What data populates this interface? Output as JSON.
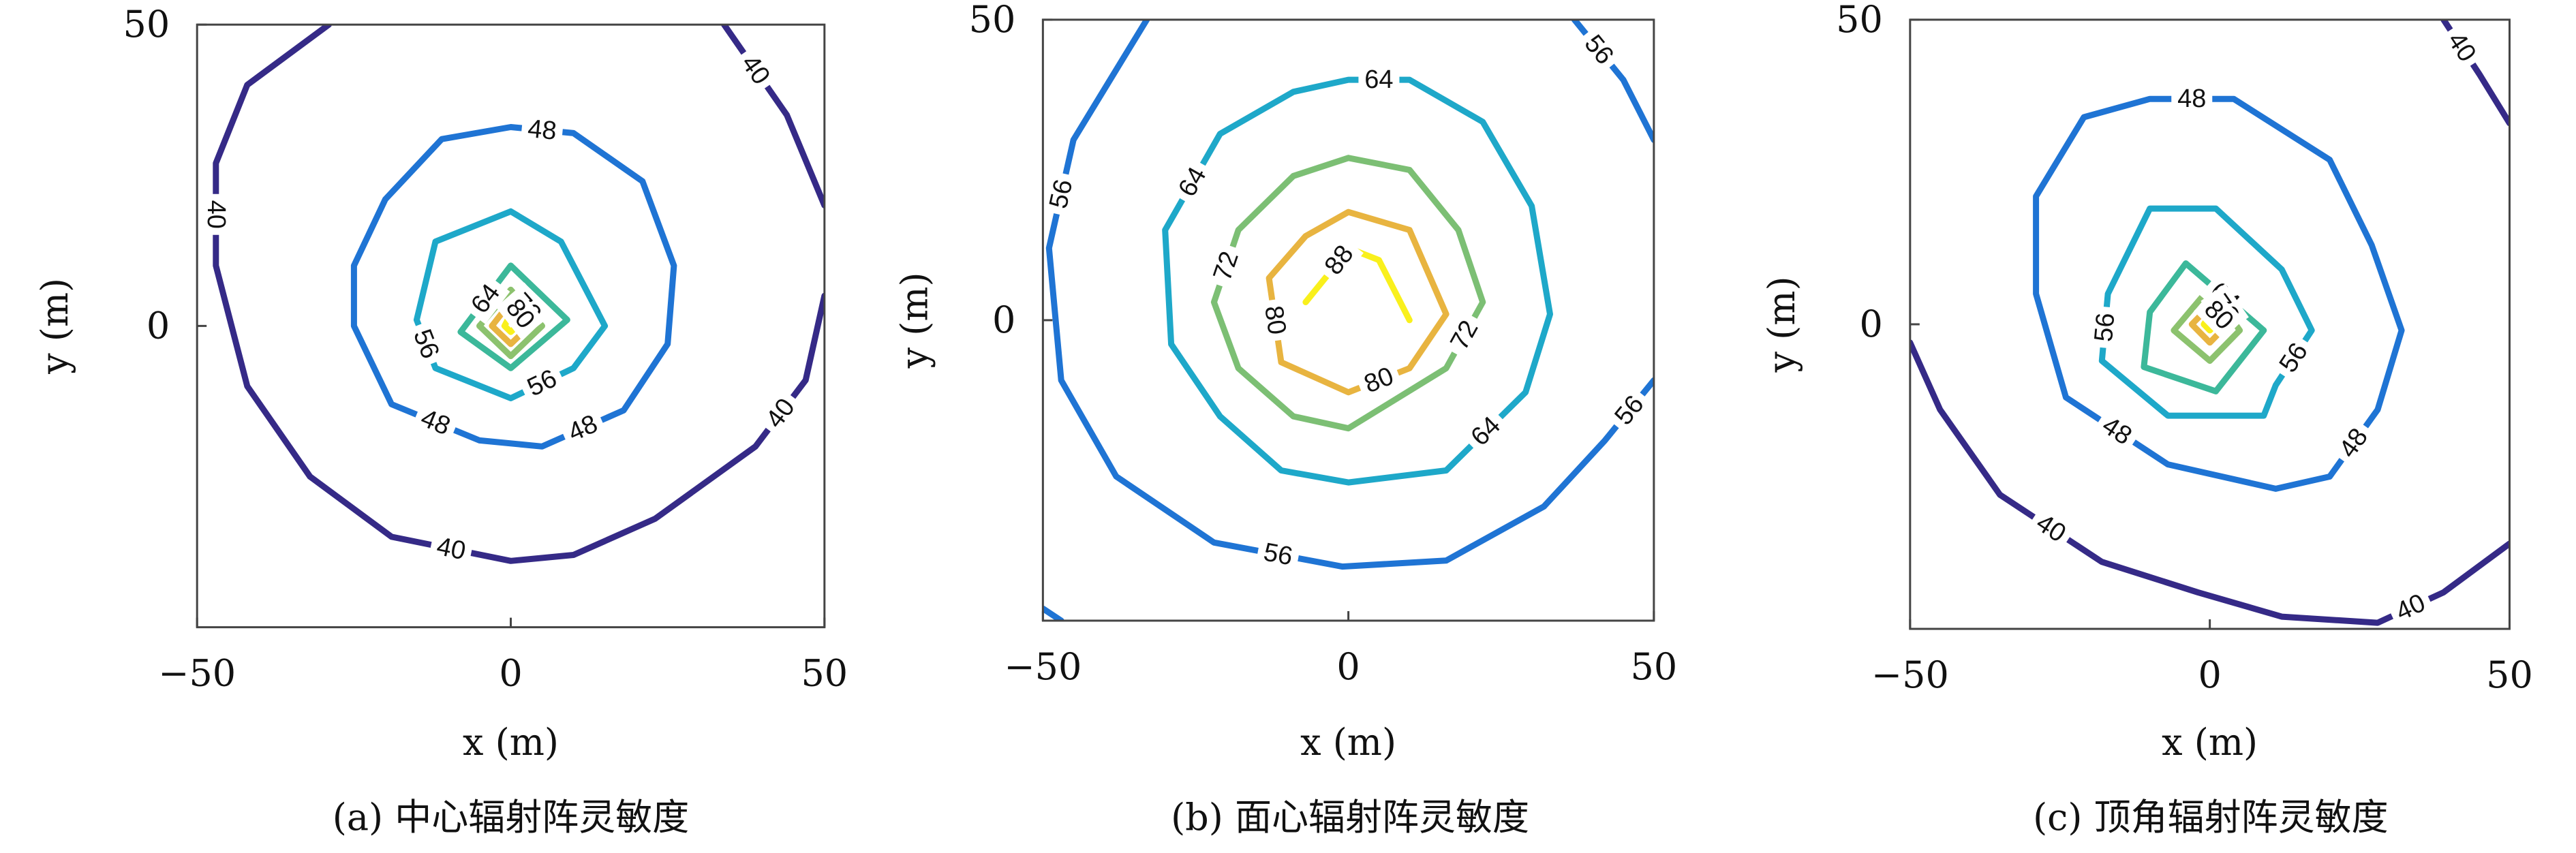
{
  "chart_data": [
    {
      "type": "contour",
      "caption": "(a) 中心辐射阵灵敏度",
      "xlabel": "x (m)",
      "ylabel": "y (m)",
      "xlim": [
        -50,
        50
      ],
      "ylim": [
        -50,
        50
      ],
      "xticks": [
        {
          "value": -50,
          "label": "−50"
        },
        0,
        50
      ],
      "yticks": [
        0,
        50
      ],
      "contours": [
        {
          "level": 40,
          "color": "#352a87",
          "x": [
            -29,
            -42,
            -47,
            -47,
            -42,
            -32,
            -19,
            0,
            10,
            23,
            39,
            47,
            50
          ],
          "y": [
            50,
            40,
            27,
            10,
            -10,
            -25,
            -35,
            -39,
            -38,
            -32,
            -20,
            -9,
            5
          ]
        },
        {
          "level": 40,
          "color": "#352a87",
          "x": [
            34,
            44,
            50
          ],
          "y": [
            50,
            35,
            20
          ]
        },
        {
          "level": 48,
          "color": "#1f74d4",
          "x": [
            0,
            10,
            21,
            26,
            25,
            18,
            5,
            -5,
            -19,
            -25,
            -25,
            -20,
            -11,
            0
          ],
          "y": [
            33,
            32,
            24,
            10,
            -3,
            -14,
            -20,
            -19,
            -13,
            0,
            10,
            21,
            31,
            33
          ]
        },
        {
          "level": 56,
          "color": "#1ea8c9",
          "x": [
            0,
            8,
            15,
            10,
            0,
            -12,
            -15,
            -12,
            0
          ],
          "y": [
            19,
            14,
            0,
            -7,
            -12,
            -7,
            1,
            14,
            19
          ]
        },
        {
          "level": 64,
          "color": "#3cb89a",
          "x": [
            0,
            9,
            0,
            -8,
            0
          ],
          "y": [
            10,
            1,
            -7,
            -1,
            10
          ]
        },
        {
          "level": 72,
          "color": "#8cc26e",
          "x": [
            0,
            5,
            0,
            -5,
            0
          ],
          "y": [
            6,
            0,
            -5,
            0,
            6
          ]
        },
        {
          "level": 80,
          "color": "#e8b440",
          "x": [
            0,
            3,
            0,
            -3,
            0
          ],
          "y": [
            4,
            0,
            -3,
            0,
            4
          ]
        },
        {
          "level": 88,
          "color": "#f9f01c",
          "x": [
            0,
            1,
            0,
            -1,
            0
          ],
          "y": [
            2,
            0,
            -1,
            0,
            2
          ]
        }
      ]
    },
    {
      "type": "contour",
      "caption": "(b) 面心辐射阵灵敏度",
      "xlabel": "x (m)",
      "ylabel": "y (m)",
      "xlim": [
        -50,
        50
      ],
      "ylim": [
        -50,
        50
      ],
      "xticks": [
        {
          "value": -50,
          "label": "−50"
        },
        0,
        50
      ],
      "yticks": [
        0,
        50
      ],
      "contours": [
        {
          "level": 56,
          "color": "#1f74d4",
          "x": [
            -33,
            -45,
            -49,
            -47,
            -38,
            -22,
            -1,
            16,
            32,
            42,
            50
          ],
          "y": [
            50,
            30,
            12,
            -10,
            -26,
            -37,
            -41,
            -40,
            -31,
            -20,
            -10
          ]
        },
        {
          "level": 56,
          "color": "#1f74d4",
          "x": [
            37,
            45,
            50
          ],
          "y": [
            50,
            40,
            30
          ]
        },
        {
          "level": 56,
          "color": "#1f74d4",
          "x": [
            -50,
            -47
          ],
          "y": [
            -48,
            -50
          ]
        },
        {
          "level": 64,
          "color": "#1ea8c9",
          "x": [
            0,
            10,
            22,
            30,
            33,
            29,
            16,
            0,
            -11,
            -21,
            -29,
            -30,
            -21,
            -9,
            0
          ],
          "y": [
            40,
            40,
            33,
            19,
            1,
            -12,
            -25,
            -27,
            -25,
            -16,
            -4,
            15,
            31,
            38,
            40
          ]
        },
        {
          "level": 72,
          "color": "#7cbf74",
          "x": [
            0,
            10,
            18,
            22,
            16,
            0,
            -9,
            -18,
            -22,
            -18,
            -9,
            0
          ],
          "y": [
            27,
            25,
            15,
            3,
            -8,
            -18,
            -16,
            -8,
            3,
            15,
            24,
            27
          ]
        },
        {
          "level": 80,
          "color": "#e8b440",
          "x": [
            0,
            10,
            16,
            10,
            0,
            -11,
            -13,
            -7,
            0
          ],
          "y": [
            18,
            15,
            1,
            -8,
            -12,
            -7,
            7,
            14,
            18
          ]
        },
        {
          "level": 88,
          "color": "#f9f01c",
          "x": [
            -7,
            -3,
            0,
            5,
            10
          ],
          "y": [
            3,
            8,
            12,
            10,
            0
          ]
        }
      ]
    },
    {
      "type": "contour",
      "caption": "(c) 顶角辐射阵灵敏度",
      "xlabel": "x (m)",
      "ylabel": "y (m)",
      "xlim": [
        -50,
        50
      ],
      "ylim": [
        -50,
        50
      ],
      "xticks": [
        {
          "value": -50,
          "label": "−50"
        },
        0,
        50
      ],
      "yticks": [
        0,
        50
      ],
      "contours": [
        {
          "level": 40,
          "color": "#352a87",
          "x": [
            -50,
            -45,
            -35,
            -18,
            -2,
            12,
            28,
            39,
            50
          ],
          "y": [
            -3,
            -14,
            -28,
            -39,
            -44,
            -48,
            -49,
            -44,
            -36
          ]
        },
        {
          "level": 40,
          "color": "#352a87",
          "x": [
            39,
            45,
            50
          ],
          "y": [
            50,
            41,
            33
          ]
        },
        {
          "level": 48,
          "color": "#1f74d4",
          "x": [
            -10,
            4,
            20,
            27,
            32,
            28,
            20,
            11,
            -7,
            -24,
            -29,
            -29,
            -21,
            -10
          ],
          "y": [
            37,
            37,
            27,
            13,
            -1,
            -14,
            -25,
            -27,
            -23,
            -12,
            5,
            21,
            34,
            37
          ]
        },
        {
          "level": 56,
          "color": "#1ea8c9",
          "x": [
            -10,
            1,
            12,
            17,
            11,
            9,
            -7,
            -18,
            -17,
            -10
          ],
          "y": [
            19,
            19,
            9,
            -1,
            -10,
            -15,
            -15,
            -6,
            5,
            19
          ]
        },
        {
          "level": 64,
          "color": "#3cb89a",
          "x": [
            -4,
            9,
            1,
            -11,
            -10,
            -4
          ],
          "y": [
            10,
            -1,
            -11,
            -7,
            2,
            10
          ]
        },
        {
          "level": 72,
          "color": "#8cc26e",
          "x": [
            0,
            5,
            0,
            -6,
            0
          ],
          "y": [
            6,
            -1,
            -6,
            -1,
            6
          ]
        },
        {
          "level": 80,
          "color": "#e8b440",
          "x": [
            0,
            3,
            0,
            -3,
            0
          ],
          "y": [
            3,
            0,
            -3,
            0,
            3
          ]
        },
        {
          "level": 88,
          "color": "#f9f01c",
          "x": [
            0,
            1,
            0,
            -1,
            0
          ],
          "y": [
            1.5,
            0,
            -1,
            0,
            1.5
          ]
        }
      ]
    }
  ]
}
